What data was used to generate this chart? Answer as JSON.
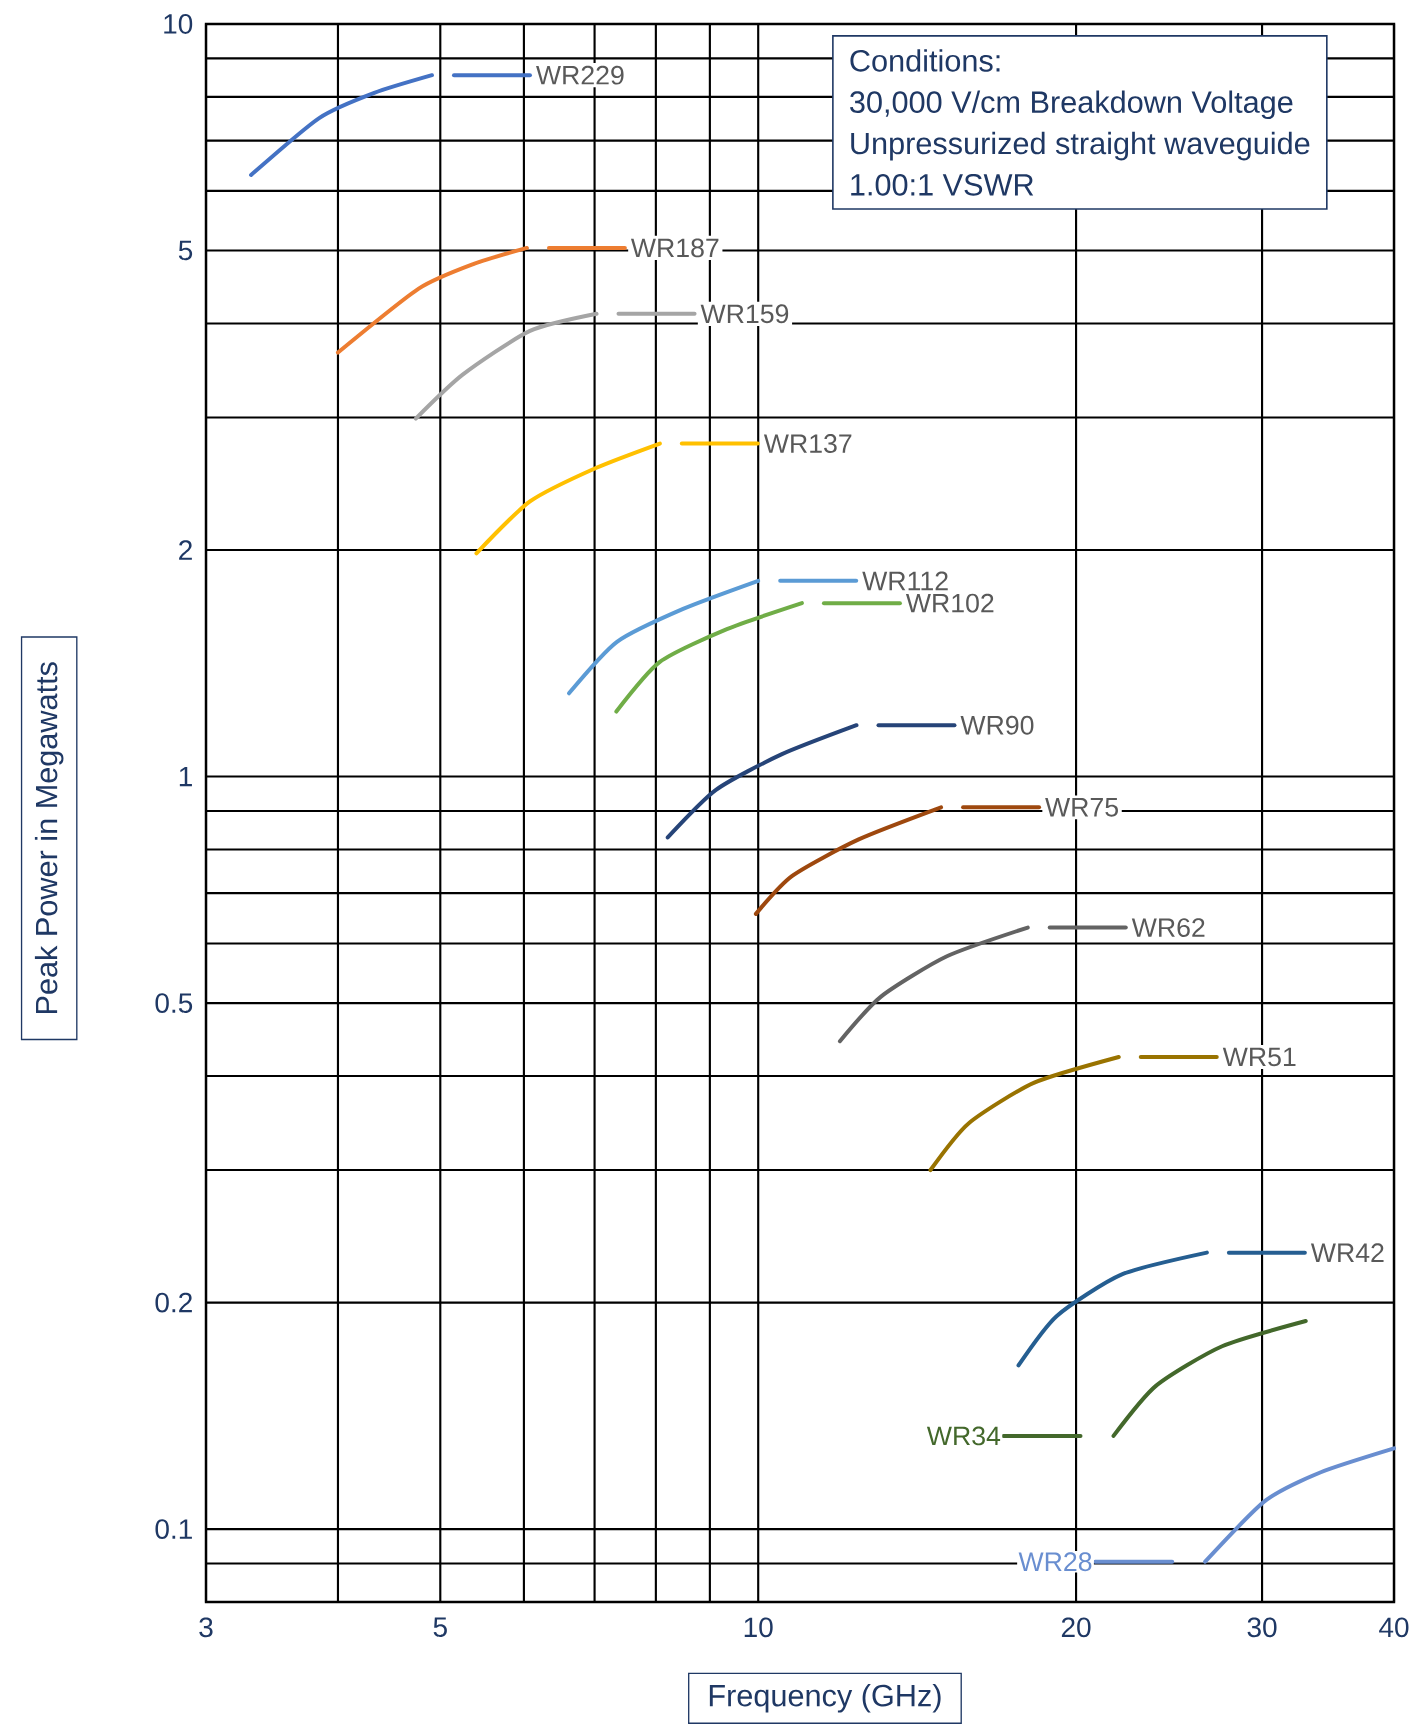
{
  "chart_data": {
    "type": "line",
    "xlabel": "Frequency (GHz)",
    "ylabel": "Peak Power in Megawatts",
    "log": "xy",
    "grid": true,
    "legend": "right",
    "xlim": [
      3,
      40
    ],
    "ylim": [
      0.08,
      10
    ],
    "xticks": [
      3,
      {
        "value": 4,
        "label": null
      },
      5,
      {
        "value": 6,
        "label": null
      },
      {
        "value": 7,
        "label": null
      },
      {
        "value": 8,
        "label": null
      },
      {
        "value": 9,
        "label": null
      },
      10,
      20,
      30,
      40
    ],
    "yticks": [
      {
        "value": 0.09,
        "label": null
      },
      0.1,
      0.2,
      {
        "value": 0.3,
        "label": null
      },
      {
        "value": 0.4,
        "label": null
      },
      0.5,
      {
        "value": 0.6,
        "label": null
      },
      {
        "value": 0.7,
        "label": null
      },
      {
        "value": 0.8,
        "label": null
      },
      {
        "value": 0.9,
        "label": null
      },
      1,
      2,
      {
        "value": 3,
        "label": null
      },
      {
        "value": 4,
        "label": null
      },
      5,
      {
        "value": 6,
        "label": null
      },
      {
        "value": 7,
        "label": null
      },
      {
        "value": 8,
        "label": null
      },
      {
        "value": 9,
        "label": null
      },
      10
    ],
    "annotations": [
      "Conditions:",
      "30,000 V/cm Breakdown Voltage",
      "Unpressurized straight waveguide",
      "1.00:1 VSWR"
    ],
    "series": [
      {
        "name": "WR229",
        "color": "#4472c4",
        "x": [
          3.31,
          3.84,
          4.33,
          4.91
        ],
        "values": [
          6.3,
          7.5,
          8.1,
          8.55
        ]
      },
      {
        "name": "WR187",
        "color": "#ed7d31",
        "x": [
          4.0,
          4.77,
          5.38,
          6.04
        ],
        "values": [
          3.66,
          4.45,
          4.8,
          5.04
        ]
      },
      {
        "name": "WR159",
        "color": "#a5a5a5",
        "x": [
          4.74,
          5.25,
          6.08,
          7.03
        ],
        "values": [
          2.99,
          3.42,
          3.91,
          4.12
        ]
      },
      {
        "name": "WR137",
        "color": "#ffc000",
        "x": [
          5.41,
          6.08,
          7.02,
          8.07
        ],
        "values": [
          1.98,
          2.32,
          2.57,
          2.77
        ]
      },
      {
        "name": "WR112",
        "color": "#5b9bd5",
        "x": [
          6.62,
          7.35,
          8.49,
          10.0
        ],
        "values": [
          1.29,
          1.51,
          1.67,
          1.82
        ]
      },
      {
        "name": "WR102",
        "color": "#70ad47",
        "x": [
          7.34,
          8.07,
          9.34,
          11.0
        ],
        "values": [
          1.22,
          1.42,
          1.57,
          1.7
        ]
      },
      {
        "name": "WR90",
        "color": "#264478",
        "x": [
          8.21,
          9.12,
          10.52,
          12.39
        ],
        "values": [
          0.83,
          0.96,
          1.07,
          1.17
        ]
      },
      {
        "name": "WR75",
        "color": "#9e480e",
        "x": [
          9.95,
          10.77,
          12.45,
          14.9
        ],
        "values": [
          0.657,
          0.738,
          0.825,
          0.91
        ]
      },
      {
        "name": "WR62",
        "color": "#636363",
        "x": [
          11.95,
          13.07,
          15.09,
          18.0
        ],
        "values": [
          0.445,
          0.51,
          0.577,
          0.63
        ]
      },
      {
        "name": "WR51",
        "color": "#997300",
        "x": [
          14.56,
          15.82,
          18.26,
          21.95
        ],
        "values": [
          0.3,
          0.346,
          0.392,
          0.424
        ]
      },
      {
        "name": "WR42",
        "color": "#255e91",
        "x": [
          17.64,
          19.18,
          22.1,
          26.6
        ],
        "values": [
          0.165,
          0.192,
          0.218,
          0.233
        ]
      },
      {
        "name": "WR34",
        "color": "#43682b",
        "x": [
          21.7,
          23.8,
          27.5,
          33.0
        ],
        "values": [
          0.133,
          0.155,
          0.175,
          0.189
        ]
      },
      {
        "name": "WR28",
        "color": "#698ed0",
        "x": [
          26.5,
          30.2,
          34.1,
          40.0
        ],
        "values": [
          0.0905,
          0.109,
          0.119,
          0.128
        ]
      }
    ]
  }
}
